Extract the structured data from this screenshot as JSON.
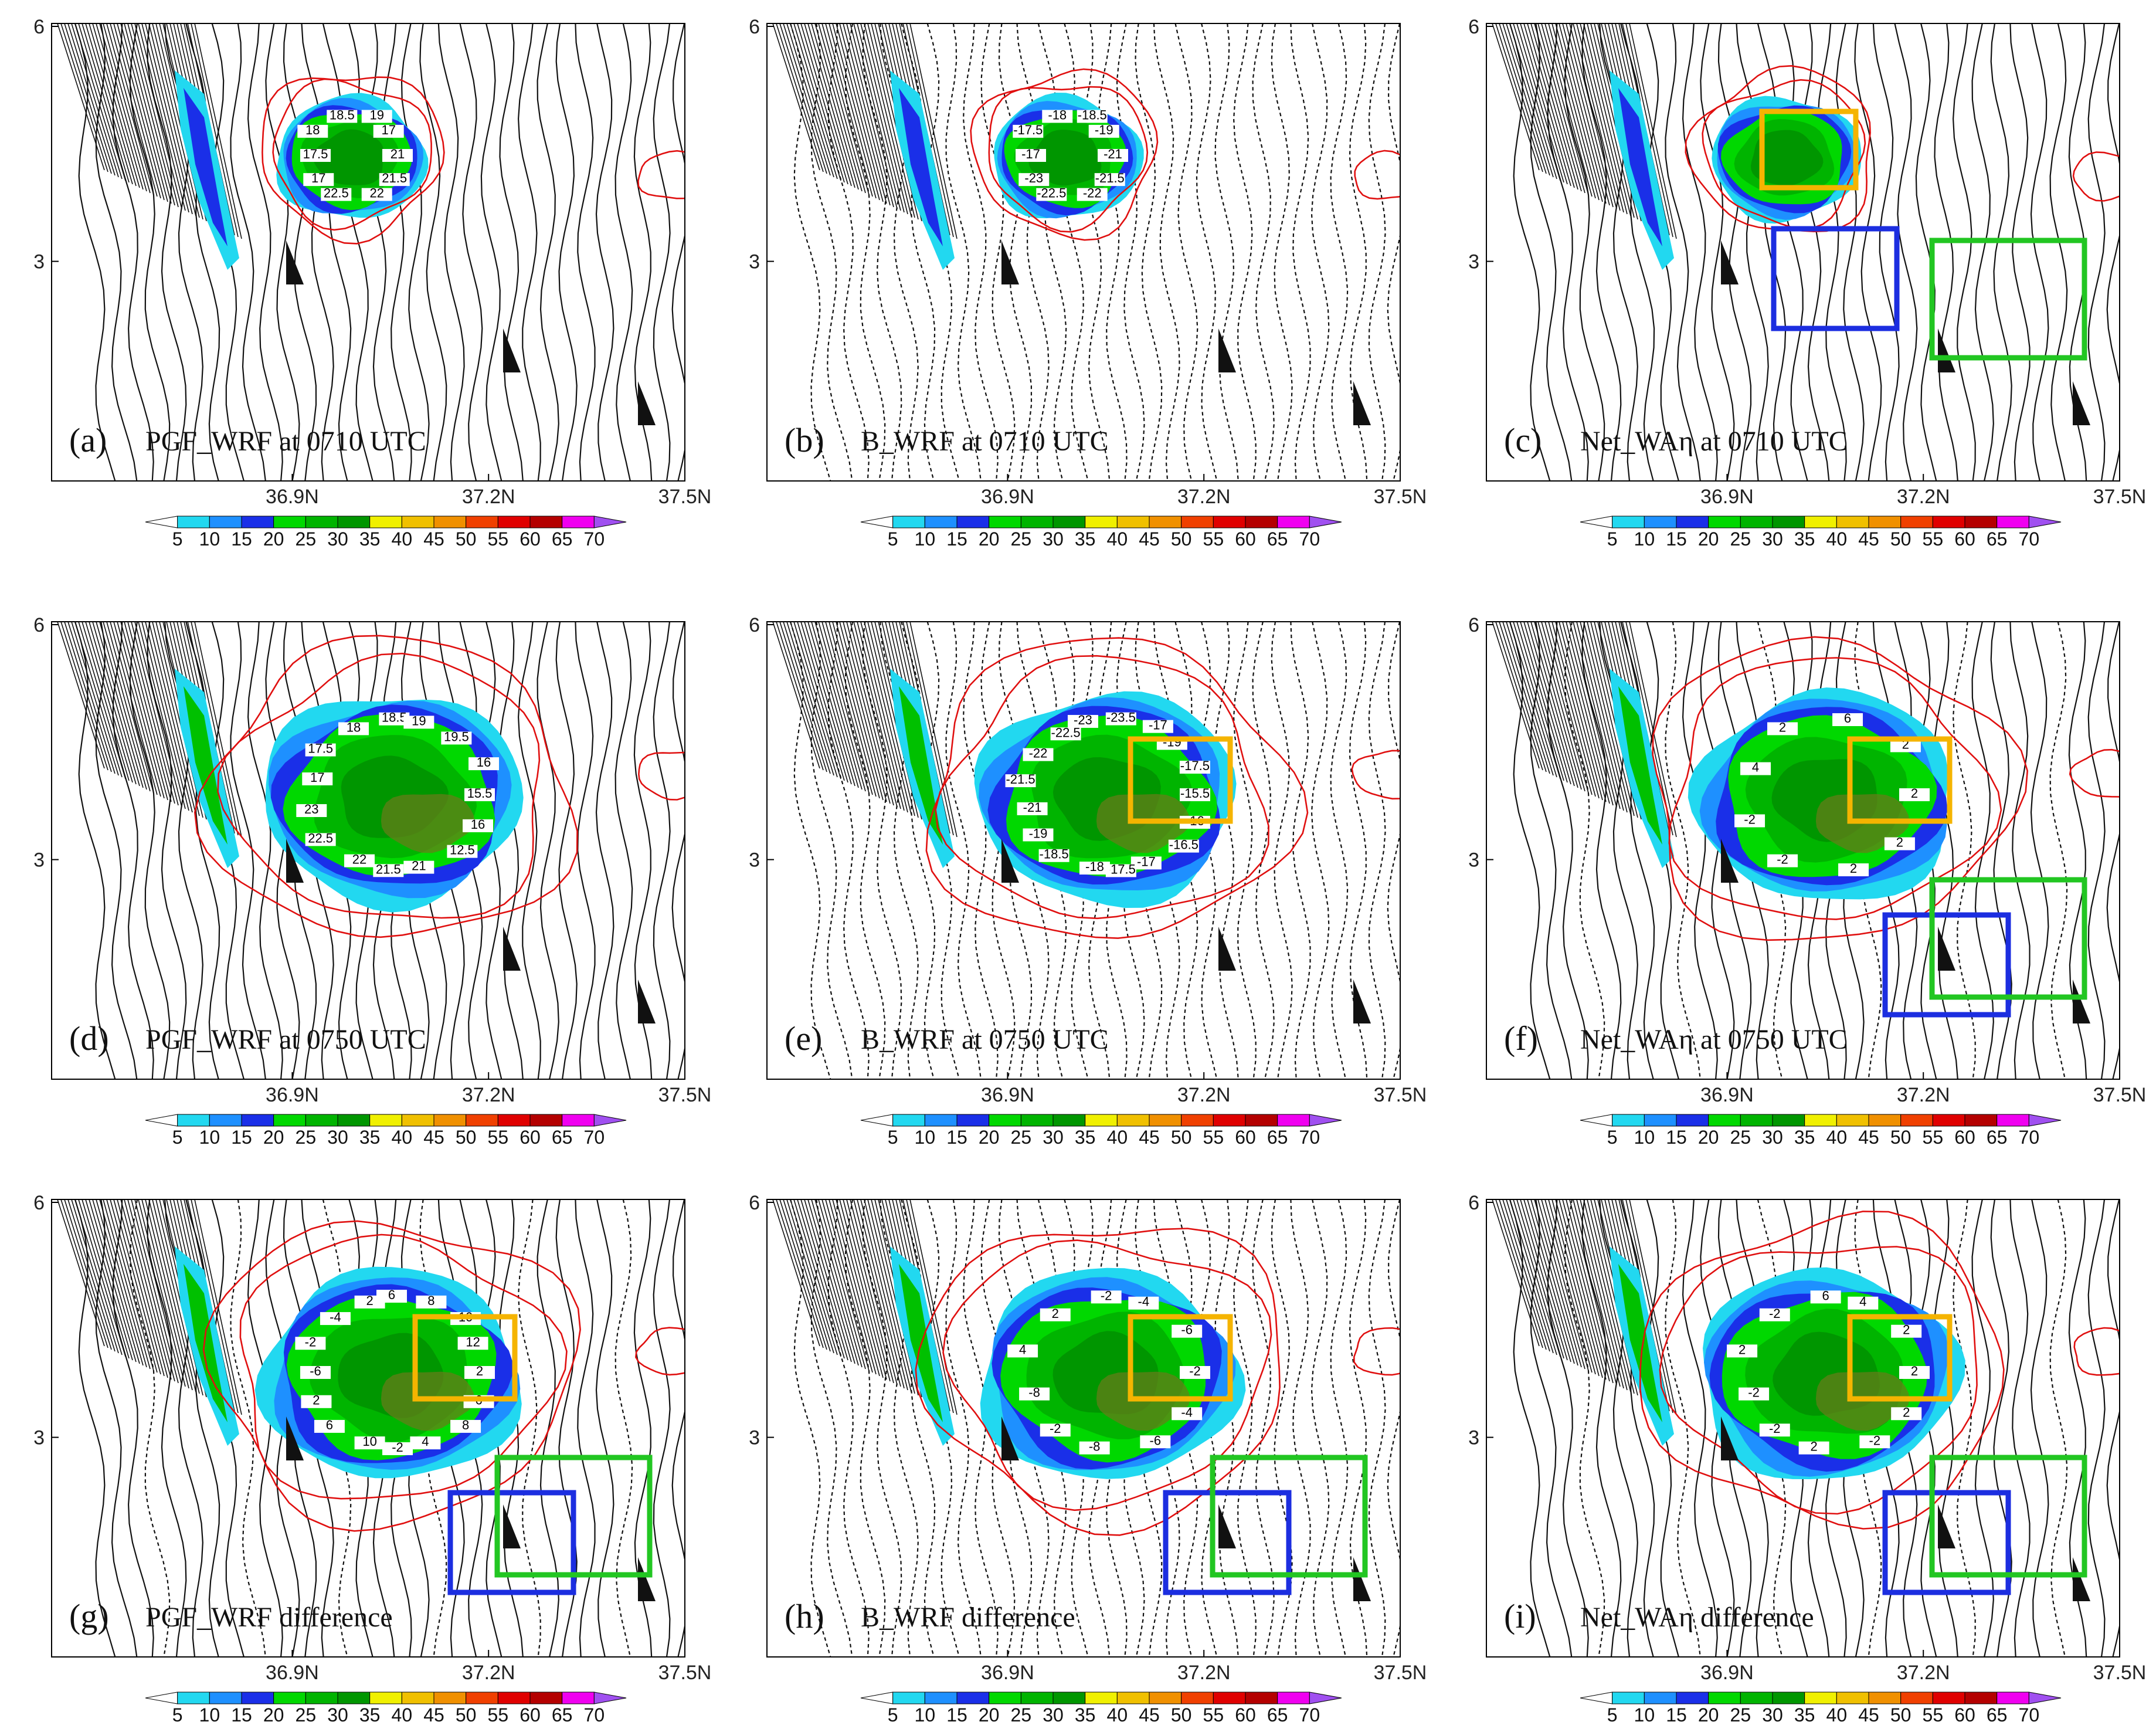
{
  "figure": {
    "colorbar": {
      "levels": [
        "5",
        "10",
        "15",
        "20",
        "25",
        "30",
        "35",
        "40",
        "45",
        "50",
        "55",
        "60",
        "65",
        "70"
      ],
      "colors": [
        "#ffffff",
        "#22d8f0",
        "#1e90ff",
        "#1a2fe8",
        "#00d800",
        "#00b400",
        "#009600",
        "#f0f000",
        "#f0c000",
        "#f09000",
        "#f04000",
        "#e00000",
        "#b40000",
        "#f000f0",
        "#a050f0"
      ]
    },
    "x_ticks": [
      "36.9N",
      "37.2N",
      "37.5N"
    ],
    "y_ticks": [
      "6",
      "3"
    ],
    "box_colors": {
      "orange": "#f5b400",
      "blue": "#1c2ee0",
      "green": "#22c622"
    },
    "panels": [
      {
        "tag": "(a)",
        "title": "PGF_WRF at 0710 UTC",
        "stage": "early",
        "boxes": [],
        "contour_labels": [
          "21",
          "21.5",
          "22",
          "22.5",
          "17",
          "17.5",
          "18",
          "18.5",
          "19",
          "17"
        ]
      },
      {
        "tag": "(b)",
        "title": "B_WRF at 0710 UTC",
        "stage": "early",
        "boxes": [],
        "contour_labels": [
          "-21",
          "-21.5",
          "-22",
          "-22.5",
          "-23",
          "-17",
          "-17.5",
          "-18",
          "-18.5",
          "-19"
        ]
      },
      {
        "tag": "(c)",
        "title": "Net_WAη at 0710 UTC",
        "stage": "early",
        "boxes": [
          "orange",
          "blue",
          "green"
        ],
        "contour_labels": []
      },
      {
        "tag": "(d)",
        "title": "PGF_WRF at 0750 UTC",
        "stage": "late",
        "boxes": [],
        "contour_labels": [
          "15.5",
          "16",
          "12.5",
          "21",
          "21.5",
          "22",
          "22.5",
          "23",
          "17",
          "17.5",
          "18",
          "18.5",
          "19",
          "19.5",
          "16"
        ]
      },
      {
        "tag": "(e)",
        "title": "B_WRF at 0750 UTC",
        "stage": "late",
        "boxes": [
          "orange"
        ],
        "contour_labels": [
          "-15.5",
          "-16",
          "-16.5",
          "-17",
          "-17.5",
          "-18",
          "-18.5",
          "-19",
          "-21",
          "-21.5",
          "-22",
          "-22.5",
          "-23",
          "-23.5",
          "-17",
          "-19",
          "-17.5"
        ]
      },
      {
        "tag": "(f)",
        "title": "Net_WAη at 0750 UTC",
        "stage": "late",
        "boxes": [
          "orange",
          "blue",
          "green"
        ],
        "contour_labels": [
          "2",
          "2",
          "2",
          "-2",
          "-2",
          "4",
          "2",
          "6",
          "2"
        ]
      },
      {
        "tag": "(g)",
        "title": "PGF_WRF difference",
        "stage": "late",
        "boxes": [
          "orange",
          "blue",
          "green"
        ],
        "contour_labels": [
          "2",
          "6",
          "8",
          "4",
          "-2",
          "10",
          "6",
          "2",
          "-6",
          "-2",
          "-4",
          "2",
          "6",
          "8",
          "10",
          "12"
        ]
      },
      {
        "tag": "(h)",
        "title": "B_WRF difference",
        "stage": "late",
        "boxes": [
          "orange",
          "blue",
          "green"
        ],
        "contour_labels": [
          "-2",
          "-4",
          "-6",
          "-8",
          "-2",
          "-8",
          "4",
          "2",
          "-2",
          "-4",
          "-6"
        ]
      },
      {
        "tag": "(i)",
        "title": "Net_WAη difference",
        "stage": "late",
        "boxes": [
          "orange",
          "blue",
          "green"
        ],
        "contour_labels": [
          "2",
          "2",
          "-2",
          "2",
          "-2",
          "-2",
          "2",
          "-2",
          "6",
          "4",
          "2"
        ]
      }
    ]
  }
}
